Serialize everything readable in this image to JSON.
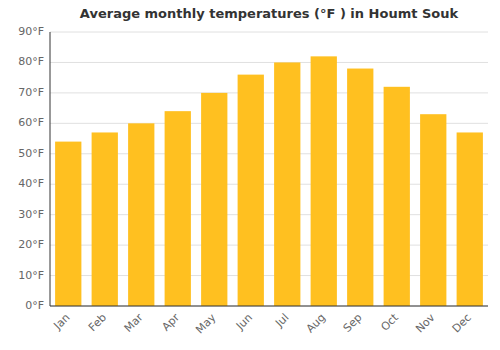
{
  "chart_data": {
    "type": "bar",
    "title": "Average monthly temperatures (°F ) in Houmt Souk",
    "categories": [
      "Jan",
      "Feb",
      "Mar",
      "Apr",
      "May",
      "Jun",
      "Jul",
      "Aug",
      "Sep",
      "Oct",
      "Nov",
      "Dec"
    ],
    "values": [
      54,
      57,
      60,
      64,
      70,
      76,
      80,
      82,
      78,
      72,
      63,
      57
    ],
    "color": "#FFC020",
    "ylim": [
      0,
      90
    ],
    "yticks": [
      {
        "value": 0,
        "label": "0°F"
      },
      {
        "value": 10,
        "label": "10°F"
      },
      {
        "value": 20,
        "label": "20°F"
      },
      {
        "value": 30,
        "label": "30°F"
      },
      {
        "value": 40,
        "label": "40°F"
      },
      {
        "value": 50,
        "label": "50°F"
      },
      {
        "value": 60,
        "label": "60°F"
      },
      {
        "value": 70,
        "label": "70°F"
      },
      {
        "value": 80,
        "label": "80°F"
      },
      {
        "value": 90,
        "label": "90°F"
      }
    ],
    "grid": true
  }
}
